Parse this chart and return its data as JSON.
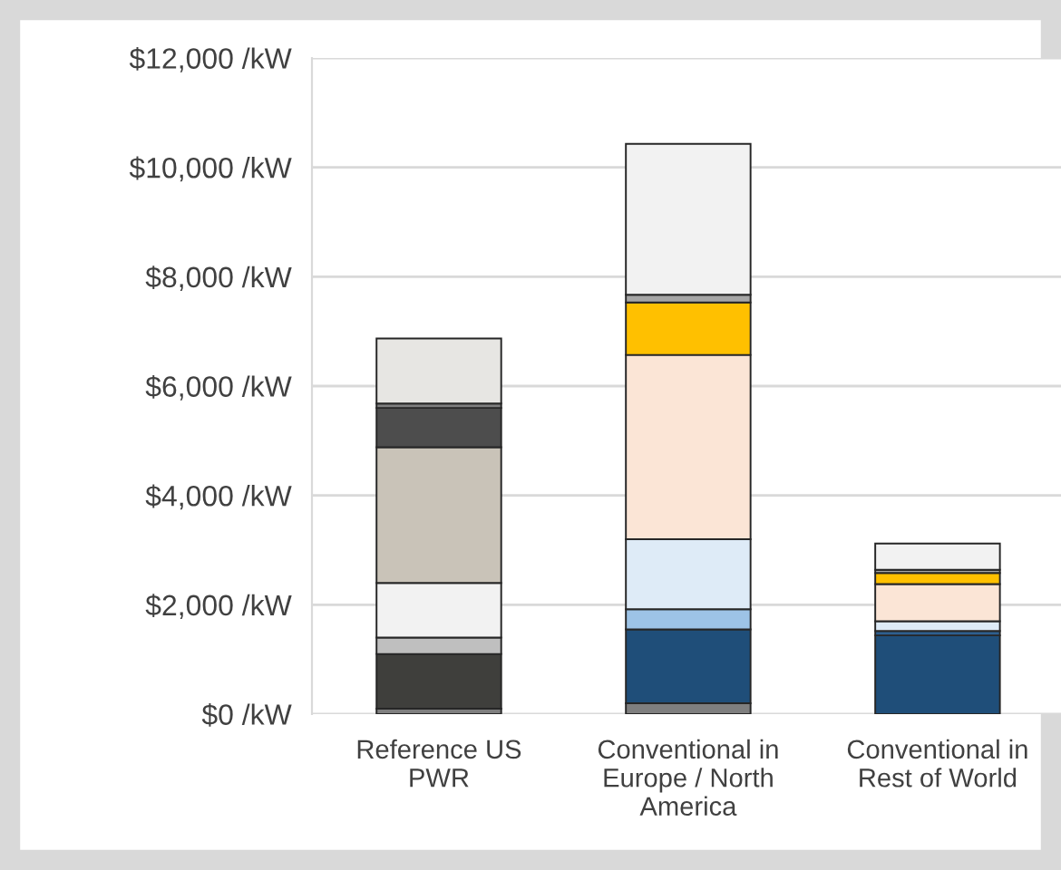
{
  "chart_data": {
    "type": "bar",
    "stacked": true,
    "categories": [
      "Reference US\nPWR",
      "Conventional in\nEurope / North\nAmerica",
      "Conventional in\nRest of World"
    ],
    "series": [
      {
        "colors": [
          "#7f7f7f",
          "#7f7f7f",
          "#7f7f7f"
        ],
        "values": [
          100,
          200,
          null
        ]
      },
      {
        "colors": [
          "#3f3f3c",
          "#1f4e79",
          "#1f4e79"
        ],
        "values": [
          1000,
          1350,
          1440
        ]
      },
      {
        "colors": [
          "#bfbfbf",
          "#9dc3e6",
          "#2e5f8f"
        ],
        "values": [
          300,
          370,
          80
        ]
      },
      {
        "colors": [
          "#f2f2f2",
          "#deebf7",
          "#deebf7"
        ],
        "values": [
          1000,
          1280,
          180
        ]
      },
      {
        "colors": [
          "#c9c3b8",
          "#fbe5d6",
          "#fbe5d6"
        ],
        "values": [
          2480,
          3370,
          680
        ]
      },
      {
        "colors": [
          "#4d4d4d",
          "#ffc000",
          "#ffc000"
        ],
        "values": [
          720,
          960,
          200
        ]
      },
      {
        "colors": [
          "#7f7f7f",
          "#a6a6a6",
          "#a6a6a6"
        ],
        "values": [
          80,
          140,
          60
        ]
      },
      {
        "colors": [
          "#e7e6e3",
          "#f2f2f2",
          "#f2f2f2"
        ],
        "values": [
          1190,
          2760,
          480
        ]
      }
    ],
    "ylim": [
      0,
      12000
    ],
    "yticks": [
      {
        "value": 0,
        "label": "$0 /kW"
      },
      {
        "value": 2000,
        "label": "$2,000 /kW"
      },
      {
        "value": 4000,
        "label": "$4,000 /kW"
      },
      {
        "value": 6000,
        "label": "$6,000 /kW"
      },
      {
        "value": 8000,
        "label": "$8,000 /kW"
      },
      {
        "value": 10000,
        "label": "$10,000 /kW"
      },
      {
        "value": 12000,
        "label": "$12,000 /kW"
      }
    ],
    "grid": "y",
    "legend": false
  }
}
